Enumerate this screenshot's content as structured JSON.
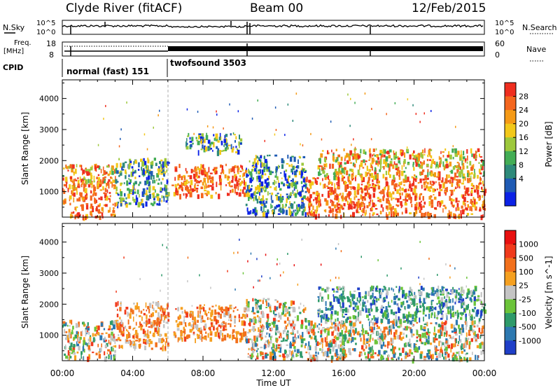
{
  "header": {
    "station": "Clyde River (fitACF)",
    "beam": "Beam 00",
    "date": "12/Feb/2015"
  },
  "nsky_panel": {
    "left_label": "N.Sky",
    "left_ticks": [
      "10^5",
      "10^0"
    ],
    "right_label": "N.Search",
    "right_ticks": [
      "10^5",
      "10^0"
    ]
  },
  "freq_panel": {
    "left_label_1": "Freq.",
    "left_label_2": "[MHz]",
    "left_ticks": [
      "18",
      "8"
    ],
    "right_label": "Nave",
    "right_ticks": [
      "60",
      "0"
    ]
  },
  "cpid_panel": {
    "label": "CPID",
    "modes": [
      {
        "name": "normal (fast) 151",
        "start_hour": 0,
        "end_hour": 6
      },
      {
        "name": "twofsound 3503",
        "start_hour": 6,
        "end_hour": 24
      }
    ]
  },
  "time_axis": {
    "label": "Time UT",
    "ticks": [
      "00:00",
      "04:00",
      "08:00",
      "12:00",
      "16:00",
      "20:00",
      "00:00"
    ]
  },
  "chart_data": [
    {
      "type": "heatmap",
      "title": "",
      "xlabel": "Time UT",
      "ylabel": "Slant Range [km]",
      "xlim_hours": [
        0,
        24
      ],
      "ylim": [
        180,
        4600
      ],
      "yticks": [
        "1000",
        "2000",
        "3000",
        "4000"
      ],
      "colorbar": {
        "label": "Power [dB]",
        "ticks": [
          "4",
          "8",
          "12",
          "16",
          "20",
          "24",
          "28"
        ],
        "colors": [
          "#0b22e6",
          "#1f5bb4",
          "#2e8a7a",
          "#43ad55",
          "#9dc83c",
          "#f2c81a",
          "#f59a16",
          "#f4661e",
          "#ef2e1f"
        ]
      },
      "regions": [
        {
          "hours": [
            0.0,
            2.7
          ],
          "range_km": [
            700,
            1500
          ],
          "level": "high"
        },
        {
          "hours": [
            0.0,
            3.0
          ],
          "range_km": [
            1200,
            1900
          ],
          "level": "medium"
        },
        {
          "hours": [
            0.4,
            3.0
          ],
          "range_km": [
            200,
            650
          ],
          "level": "high"
        },
        {
          "hours": [
            3.0,
            6.0
          ],
          "range_km": [
            600,
            2100
          ],
          "level": "low"
        },
        {
          "hours": [
            6.2,
            10.4
          ],
          "range_km": [
            900,
            1900
          ],
          "level": "high"
        },
        {
          "hours": [
            7.0,
            10.2
          ],
          "range_km": [
            2300,
            2900
          ],
          "level": "low"
        },
        {
          "hours": [
            10.4,
            13.8
          ],
          "range_km": [
            300,
            2200
          ],
          "level": "low"
        },
        {
          "hours": [
            13.8,
            24.0
          ],
          "range_km": [
            250,
            1500
          ],
          "level": "high"
        },
        {
          "hours": [
            14.5,
            24.0
          ],
          "range_km": [
            1500,
            2400
          ],
          "level": "medium"
        }
      ]
    },
    {
      "type": "heatmap",
      "title": "",
      "xlabel": "Time UT",
      "ylabel": "Slant Range [km]",
      "xlim_hours": [
        0,
        24
      ],
      "ylim": [
        180,
        4600
      ],
      "yticks": [
        "1000",
        "2000",
        "3000",
        "4000"
      ],
      "colorbar": {
        "label": "Velocity [m s^-1]",
        "ticks": [
          "1000",
          "500",
          "100",
          "25",
          "-25",
          "-100",
          "-500",
          "-1000"
        ],
        "colors": [
          "#1f3fc8",
          "#2d78b0",
          "#2e9a6a",
          "#6cc43a",
          "#c4c4c4",
          "#f5a020",
          "#f2701c",
          "#f03a1c",
          "#e81010"
        ]
      },
      "regions": [
        {
          "hours": [
            0.0,
            3.0
          ],
          "range_km": [
            300,
            1500
          ],
          "level": "mixed"
        },
        {
          "hours": [
            3.0,
            6.0
          ],
          "range_km": [
            600,
            2100
          ],
          "level": "toward"
        },
        {
          "hours": [
            6.2,
            10.4
          ],
          "range_km": [
            900,
            2000
          ],
          "level": "toward"
        },
        {
          "hours": [
            10.4,
            13.8
          ],
          "range_km": [
            300,
            2200
          ],
          "level": "mixed"
        },
        {
          "hours": [
            13.8,
            24.0
          ],
          "range_km": [
            250,
            1500
          ],
          "level": "mixed"
        },
        {
          "hours": [
            14.5,
            24.0
          ],
          "range_km": [
            1500,
            2600
          ],
          "level": "away"
        }
      ]
    }
  ]
}
